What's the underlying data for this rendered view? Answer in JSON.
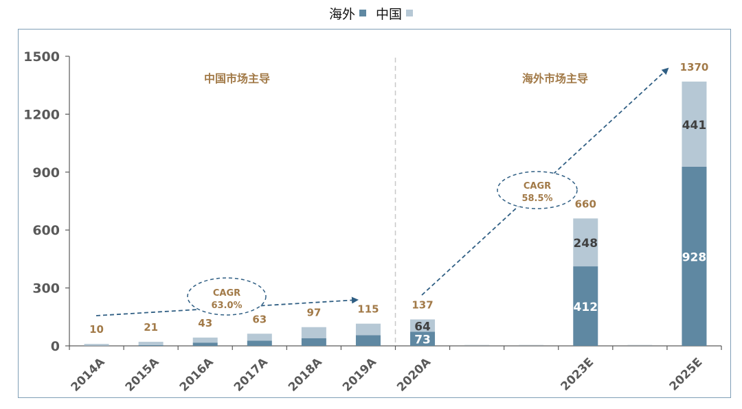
{
  "colors": {
    "overseas": "#5f88a2",
    "china": "#b6c8d5",
    "accent": "#a27a48",
    "axis": "#595959",
    "arrow": "#2f5e83"
  },
  "legend": [
    {
      "label": "海外",
      "color": "#5f88a2"
    },
    {
      "label": "中国",
      "color": "#b6c8d5"
    }
  ],
  "chart_data": {
    "type": "bar",
    "stacked": true,
    "categories": [
      "2014A",
      "2015A",
      "2016A",
      "2017A",
      "2018A",
      "2019A",
      "2020A",
      "",
      "",
      "2023E",
      "",
      "2025E"
    ],
    "series": [
      {
        "name": "海外",
        "values": [
          1,
          4,
          17,
          27,
          40,
          55,
          73,
          null,
          null,
          412,
          null,
          928
        ],
        "labels": [
          null,
          null,
          null,
          null,
          null,
          null,
          "73",
          null,
          null,
          "412",
          null,
          "928"
        ]
      },
      {
        "name": "中国",
        "values": [
          9,
          17,
          26,
          36,
          57,
          60,
          64,
          null,
          null,
          248,
          null,
          441
        ],
        "labels": [
          null,
          null,
          null,
          null,
          null,
          null,
          "64",
          null,
          null,
          "248",
          null,
          "441"
        ]
      }
    ],
    "totals": [
      10,
      21,
      43,
      63,
      97,
      115,
      137,
      null,
      null,
      660,
      null,
      1370
    ],
    "ylim": [
      0,
      1500
    ],
    "yticks": [
      "0",
      "300",
      "600",
      "900",
      "1200",
      "1500"
    ],
    "yticks_values": [
      0,
      300,
      600,
      900,
      1200,
      1500
    ],
    "annotations": {
      "region_left": "中国市场主导",
      "region_right": "海外市场主导",
      "cagr_left": {
        "line1": "CAGR",
        "line2": "63.0%"
      },
      "cagr_right": {
        "line1": "CAGR",
        "line2": "58.5%"
      }
    },
    "grid": false,
    "legend_position": "top-center"
  }
}
